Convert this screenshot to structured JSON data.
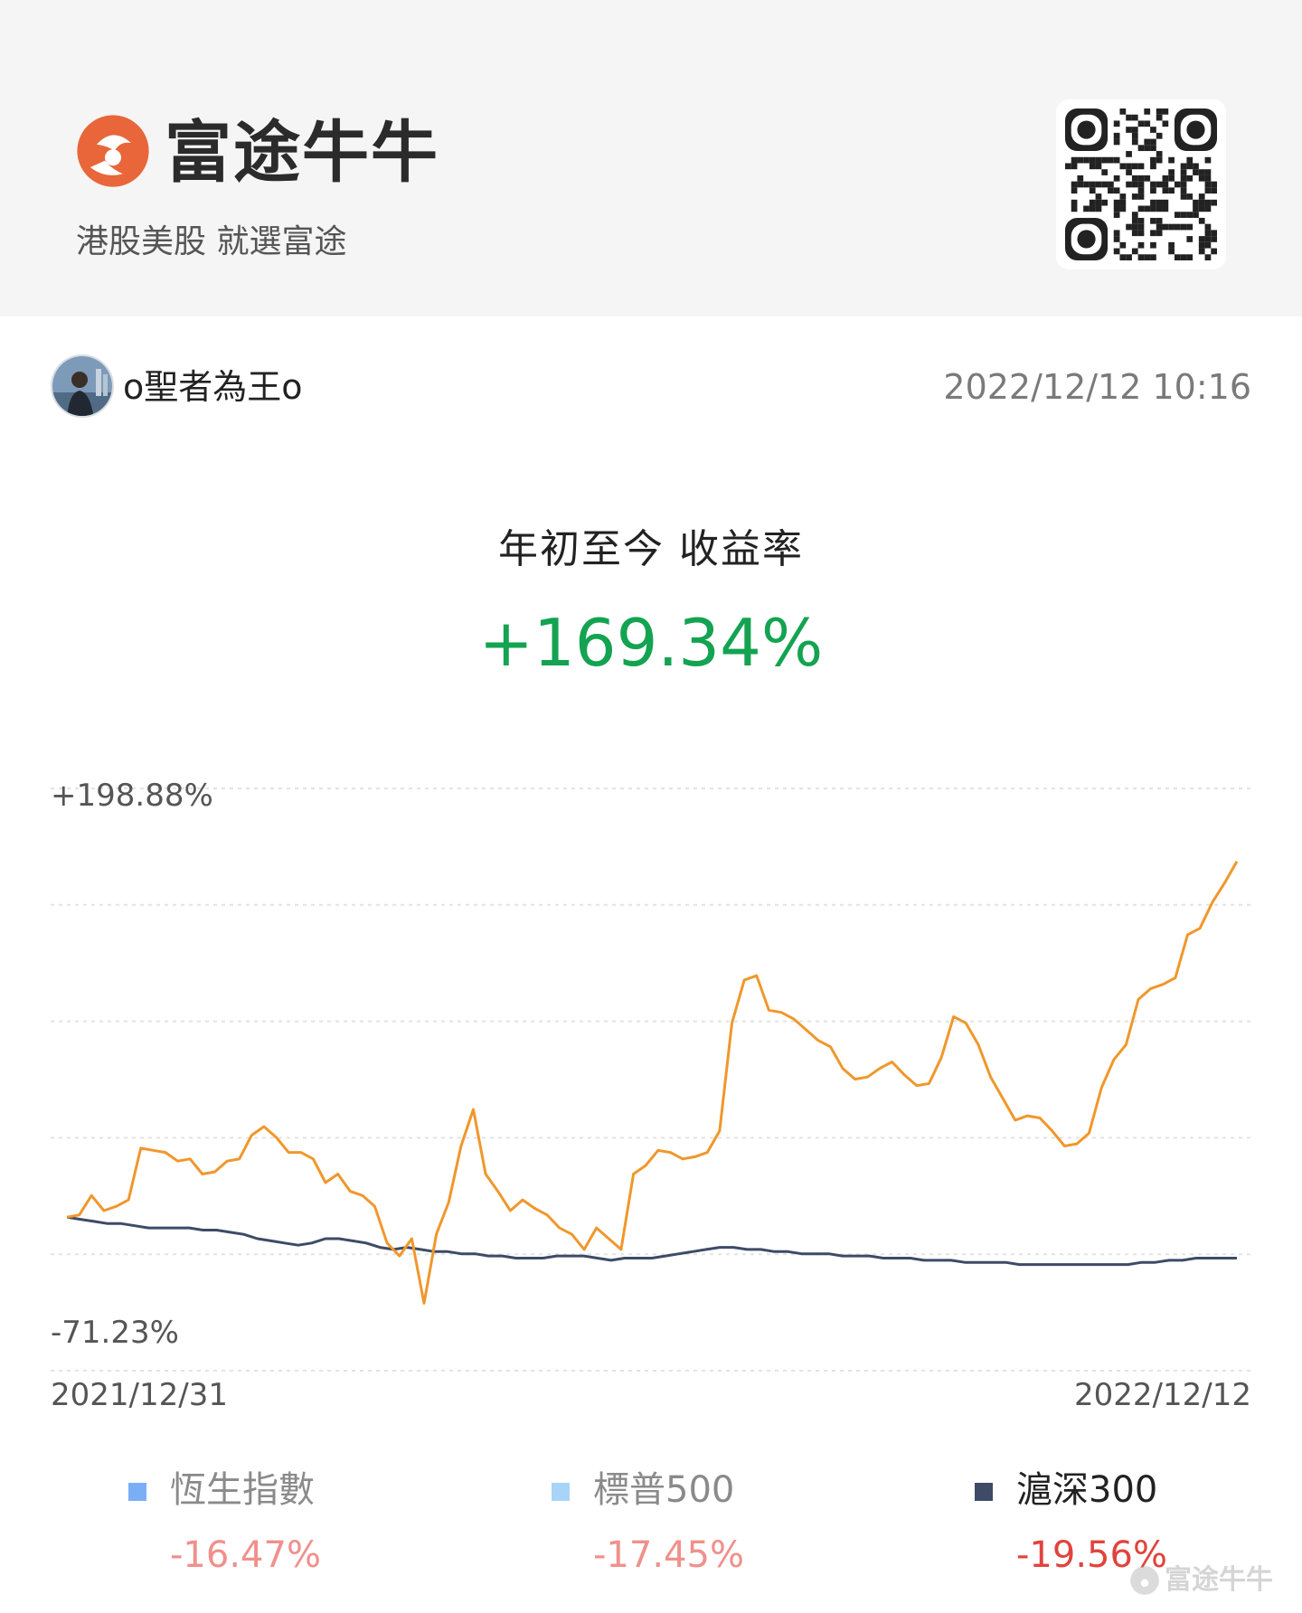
{
  "header": {
    "brand_name": "富途牛牛",
    "tagline": "港股美股 就選富途",
    "brand_color": "#e8663a"
  },
  "user": {
    "name": "o聖者為王o",
    "timestamp": "2022/12/12 10:16"
  },
  "summary": {
    "label": "年初至今 收益率",
    "value": "+169.34%",
    "value_color": "#13a351"
  },
  "chart_data": {
    "type": "line",
    "y_max_label": "+198.88%",
    "y_min_label": "-71.23%",
    "ylim": [
      -71.23,
      198.88
    ],
    "x_start_label": "2021/12/31",
    "x_end_label": "2022/12/12",
    "grid": true,
    "series": [
      {
        "color": "#f0972c",
        "values": [
          0,
          1,
          10,
          3,
          5,
          8,
          32,
          31,
          30,
          26,
          27,
          20,
          21,
          26,
          27,
          38,
          42,
          37,
          30,
          30,
          27,
          16,
          20,
          12,
          10,
          5,
          -12,
          -18,
          -10,
          -40,
          -8,
          7,
          33,
          50,
          20,
          12,
          3,
          8,
          4,
          1,
          -5,
          -8,
          -15,
          -5,
          -10,
          -15,
          20,
          24,
          31,
          30,
          27,
          28,
          30,
          40,
          90,
          110,
          112,
          96,
          95,
          92,
          87,
          82,
          79,
          69,
          64,
          65,
          69,
          72,
          66,
          61,
          62,
          74,
          93,
          90,
          80,
          65,
          55,
          45,
          47,
          46,
          40,
          33,
          34,
          39,
          60,
          73,
          80,
          101,
          106,
          108,
          111,
          131,
          134,
          146,
          155,
          165
        ]
      },
      {
        "color": "#3d4b66",
        "values": [
          0,
          -1,
          -2,
          -3,
          -3,
          -4,
          -5,
          -5,
          -5,
          -5,
          -6,
          -6,
          -7,
          -8,
          -10,
          -11,
          -12,
          -13,
          -12,
          -10,
          -10,
          -11,
          -12,
          -14,
          -15,
          -14,
          -15,
          -16,
          -16,
          -17,
          -17,
          -18,
          -18,
          -19,
          -19,
          -19,
          -18,
          -18,
          -18,
          -19,
          -20,
          -19,
          -19,
          -19,
          -18,
          -17,
          -16,
          -15,
          -14,
          -14,
          -15,
          -15,
          -16,
          -16,
          -17,
          -17,
          -17,
          -18,
          -18,
          -18,
          -19,
          -19,
          -19,
          -20,
          -20,
          -20,
          -21,
          -21,
          -21,
          -21,
          -22,
          -22,
          -22,
          -22,
          -22,
          -22,
          -22,
          -22,
          -22,
          -21,
          -21,
          -20,
          -20,
          -19,
          -19,
          -19,
          -19
        ]
      }
    ]
  },
  "legend": [
    {
      "name": "恆生指數",
      "value": "-16.47%",
      "swatch_color": "#7aaff7",
      "name_color": "#8a8a8a",
      "value_color": "#f0908c"
    },
    {
      "name": "標普500",
      "value": "-17.45%",
      "swatch_color": "#a8d4f7",
      "name_color": "#8a8a8a",
      "value_color": "#f0908c"
    },
    {
      "name": "滬深300",
      "value": "-19.56%",
      "swatch_color": "#3d4b66",
      "name_color": "#222222",
      "value_color": "#e0443e"
    }
  ],
  "watermark": {
    "text": "富途牛牛"
  }
}
